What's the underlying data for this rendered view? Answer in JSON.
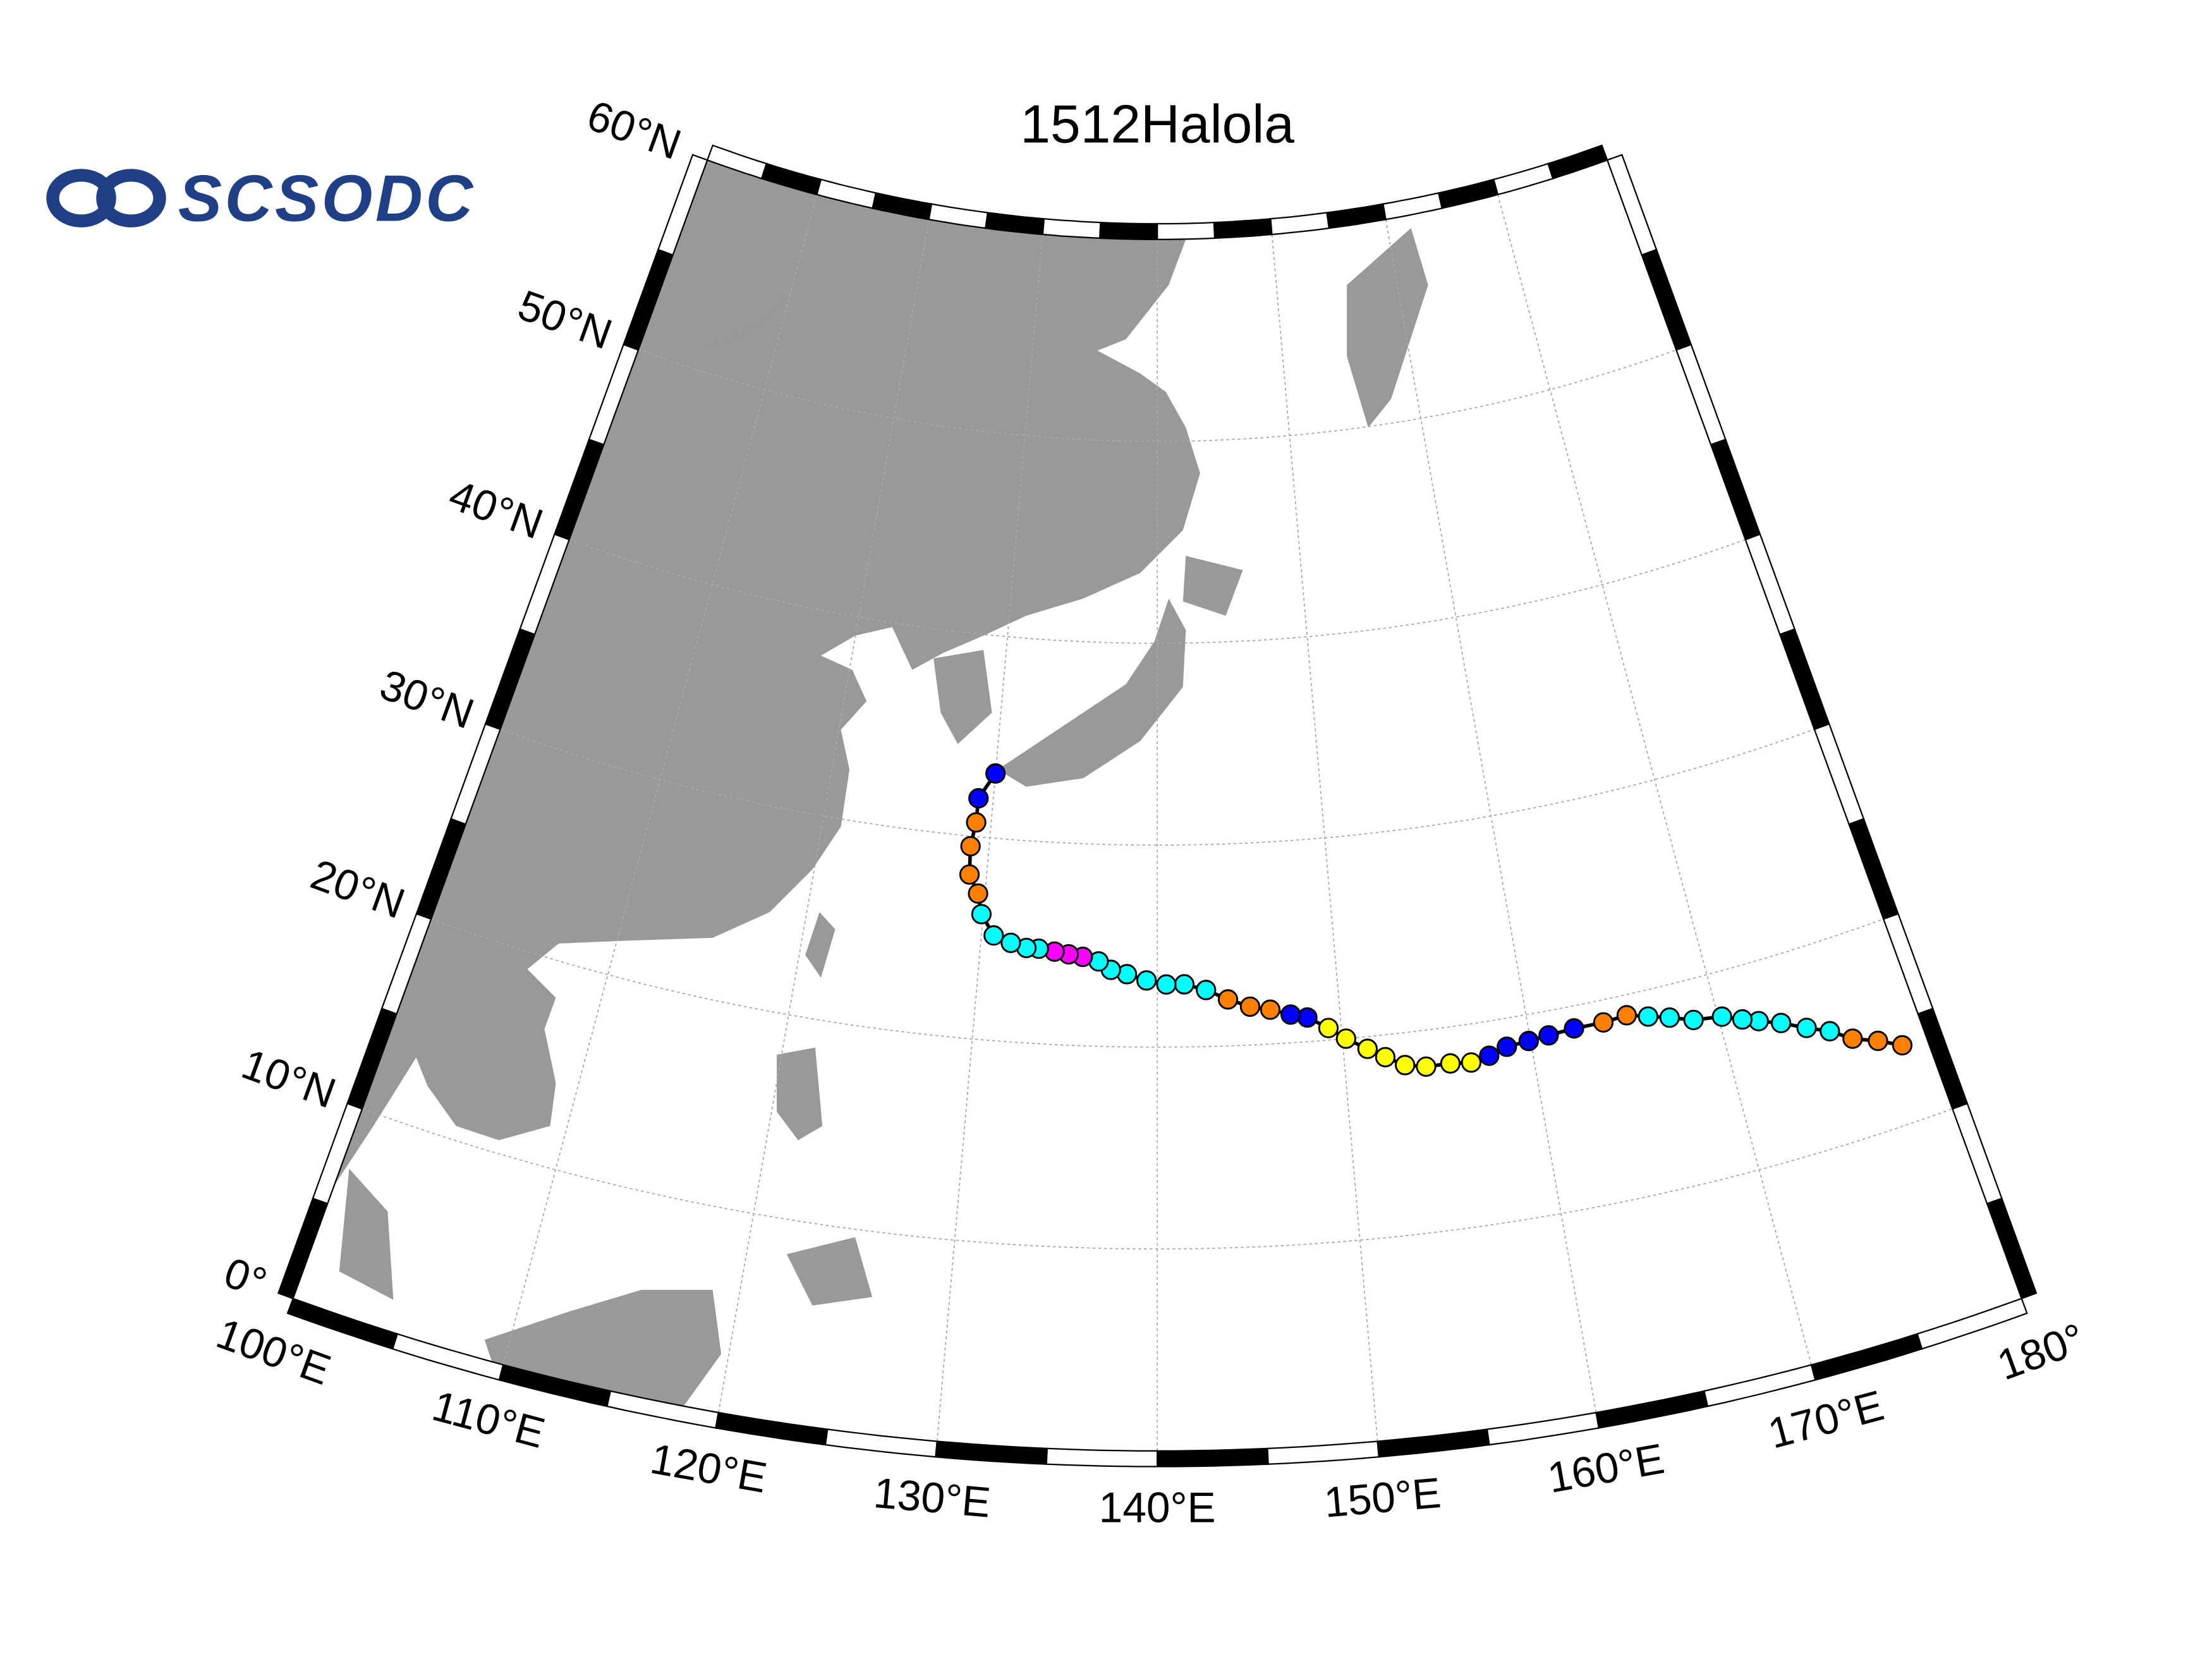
{
  "chart_data": {
    "type": "track-map",
    "title": "1512Halola",
    "logo": "SCSODC",
    "xlim": [
      100,
      180
    ],
    "ylim": [
      0,
      60
    ],
    "xticks": [
      {
        "value": 100,
        "label": "100°E"
      },
      {
        "value": 110,
        "label": "110°E"
      },
      {
        "value": 120,
        "label": "120°E"
      },
      {
        "value": 130,
        "label": "130°E"
      },
      {
        "value": 140,
        "label": "140°E"
      },
      {
        "value": 150,
        "label": "150°E"
      },
      {
        "value": 160,
        "label": "160°E"
      },
      {
        "value": 170,
        "label": "170°E"
      },
      {
        "value": 180,
        "label": "180°"
      }
    ],
    "yticks": [
      {
        "value": 0,
        "label": "0°"
      },
      {
        "value": 10,
        "label": "10°N"
      },
      {
        "value": 20,
        "label": "20°N"
      },
      {
        "value": 30,
        "label": "30°N"
      },
      {
        "value": 40,
        "label": "40°N"
      },
      {
        "value": 50,
        "label": "50°N"
      },
      {
        "value": 60,
        "label": "60°N"
      }
    ],
    "grid": true,
    "lon": [
      178.7,
      177.6,
      176.4,
      175.4,
      174.3,
      173.1,
      172.0,
      171.2,
      170.2,
      168.7,
      167.5,
      166.4,
      165.3,
      164.0,
      162.4,
      161.0,
      159.9,
      158.7,
      157.7,
      156.7,
      155.6,
      154.3,
      153.2,
      152.2,
      151.3,
      150.2,
      149.3,
      148.2,
      147.3,
      146.2,
      145.1,
      143.9,
      142.7,
      141.5,
      140.5,
      139.4,
      138.3,
      137.4,
      136.7,
      135.8,
      135.0,
      134.2,
      133.3,
      132.6,
      131.7,
      130.7,
      129.9,
      129.6,
      129.0,
      128.9,
      129.1,
      129.1,
      130.0
    ],
    "lat": [
      13.8,
      14.4,
      14.9,
      15.6,
      16.1,
      16.7,
      17.1,
      17.4,
      17.8,
      18.0,
      18.4,
      18.7,
      19.0,
      18.9,
      18.9,
      18.8,
      18.7,
      18.6,
      18.3,
      18.1,
      18.2,
      18.2,
      18.4,
      18.9,
      19.4,
      20.0,
      20.6,
      21.2,
      21.4,
      21.7,
      21.9,
      22.3,
      22.8,
      23.1,
      23.1,
      23.3,
      23.6,
      23.8,
      24.2,
      24.4,
      24.5,
      24.6,
      24.7,
      24.7,
      24.9,
      25.2,
      26.2,
      27.2,
      28.1,
      29.5,
      30.7,
      31.9,
      33.2
    ],
    "colors": [
      "#ff8000",
      "#ff8000",
      "#ff8000",
      "#00ffff",
      "#00ffff",
      "#00ffff",
      "#00ffff",
      "#00ffff",
      "#00ffff",
      "#00ffff",
      "#00ffff",
      "#00ffff",
      "#ff8000",
      "#ff8000",
      "#0000ff",
      "#0000ff",
      "#0000ff",
      "#0000ff",
      "#0000ff",
      "#ffff00",
      "#ffff00",
      "#ffff00",
      "#ffff00",
      "#ffff00",
      "#ffff00",
      "#ffff00",
      "#ffff00",
      "#0000ff",
      "#0000ff",
      "#ff8000",
      "#ff8000",
      "#ff8000",
      "#00ffff",
      "#00ffff",
      "#00ffff",
      "#00ffff",
      "#00ffff",
      "#00ffff",
      "#00ffff",
      "#ff00ff",
      "#ff00ff",
      "#ff00ff",
      "#00ffff",
      "#00ffff",
      "#00ffff",
      "#00ffff",
      "#00ffff",
      "#ff8000",
      "#ff8000",
      "#ff8000",
      "#ff8000",
      "#0000ff",
      "#0000ff"
    ]
  }
}
